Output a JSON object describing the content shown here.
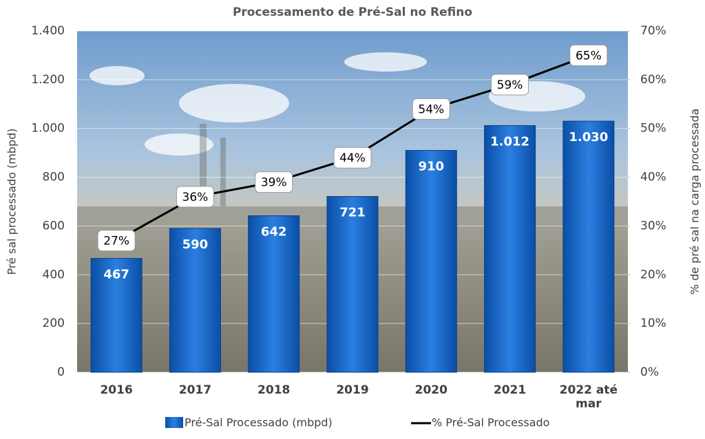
{
  "chart_data": {
    "type": "bar_line",
    "title": "Processamento de Pré-Sal no Refino",
    "y_label": "Pré sal processado (mbpd)",
    "y2_label": "% de pré sal na carga processada",
    "categories": [
      "2016",
      "2017",
      "2018",
      "2019",
      "2020",
      "2021",
      "2022 até mar"
    ],
    "series": [
      {
        "name": "Pré-Sal Processado (mbpd)",
        "type": "bar",
        "color": "#0e5cc0",
        "values": [
          467,
          590,
          642,
          721,
          910,
          1012,
          1030
        ],
        "value_labels": [
          "467",
          "590",
          "642",
          "721",
          "910",
          "1.012",
          "1.030"
        ]
      },
      {
        "name": "% Pré-Sal Processado",
        "type": "line",
        "axis": "y2",
        "color": "#000000",
        "values": [
          27,
          36,
          39,
          44,
          54,
          59,
          65
        ],
        "value_labels": [
          "27%",
          "36%",
          "39%",
          "44%",
          "54%",
          "59%",
          "65%"
        ]
      }
    ],
    "ylim": [
      0,
      1400
    ],
    "yticks": [
      0,
      200,
      400,
      600,
      800,
      {
        "value": 1000,
        "label": "1.000"
      },
      {
        "value": 1200,
        "label": "1.200"
      },
      {
        "value": 1400,
        "label": "1.400"
      }
    ],
    "y2lim": [
      0,
      70
    ],
    "y2ticks": [
      {
        "value": 0,
        "label": "0%"
      },
      {
        "value": 10,
        "label": "10%"
      },
      {
        "value": 20,
        "label": "20%"
      },
      {
        "value": 30,
        "label": "30%"
      },
      {
        "value": 40,
        "label": "40%"
      },
      {
        "value": 50,
        "label": "50%"
      },
      {
        "value": 60,
        "label": "60%"
      },
      {
        "value": 70,
        "label": "70%"
      }
    ],
    "grid": true,
    "legend": "bottom"
  }
}
